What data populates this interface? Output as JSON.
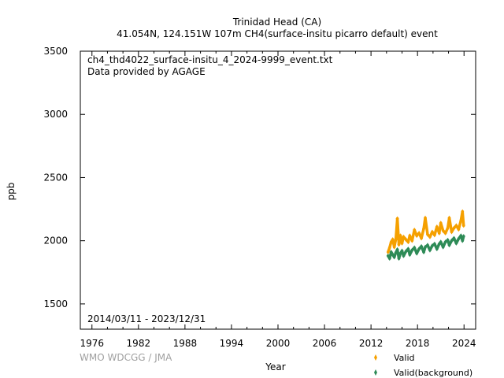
{
  "header": {
    "title": "Trinidad Head (CA)",
    "subtitle": "41.054N, 124.151W 107m    CH4(surface-insitu picarro default) event"
  },
  "annotations": {
    "filename": "ch4_thd4022_surface-insitu_4_2024-9999_event.txt",
    "provider": "Data provided by AGAGE",
    "date_range": "2014/03/11 - 2023/12/31"
  },
  "watermark": "WMO WDCGG / JMA",
  "colors": {
    "valid": "#f5a000",
    "background": "#2e8b57",
    "axis": "#000000",
    "watermark": "#a0a0a0"
  },
  "chart_data": {
    "type": "scatter",
    "xlabel": "Year",
    "ylabel": "ppb",
    "xlim": [
      1974.5,
      2025.5
    ],
    "ylim": [
      1300,
      3500
    ],
    "x_ticks": [
      "1976",
      "1982",
      "1988",
      "1994",
      "2000",
      "2006",
      "2012",
      "2018",
      "2024"
    ],
    "y_ticks": [
      "3500",
      "3000",
      "2500",
      "2000",
      "1500"
    ],
    "grid": false,
    "legend_position": "bottom-right",
    "series": [
      {
        "name": "Valid",
        "marker": "diamond",
        "points": [
          [
            2014.2,
            1910
          ],
          [
            2014.4,
            1945
          ],
          [
            2014.6,
            1990
          ],
          [
            2014.8,
            2010
          ],
          [
            2015.0,
            1950
          ],
          [
            2015.2,
            2010
          ],
          [
            2015.4,
            2175
          ],
          [
            2015.6,
            1970
          ],
          [
            2015.8,
            2040
          ],
          [
            2016.0,
            1980
          ],
          [
            2016.2,
            2030
          ],
          [
            2016.5,
            2010
          ],
          [
            2016.8,
            1990
          ],
          [
            2017.0,
            2040
          ],
          [
            2017.3,
            2000
          ],
          [
            2017.6,
            2085
          ],
          [
            2017.9,
            2040
          ],
          [
            2018.2,
            2060
          ],
          [
            2018.5,
            2020
          ],
          [
            2018.8,
            2095
          ],
          [
            2019.0,
            2180
          ],
          [
            2019.3,
            2050
          ],
          [
            2019.6,
            2030
          ],
          [
            2019.9,
            2070
          ],
          [
            2020.2,
            2045
          ],
          [
            2020.5,
            2110
          ],
          [
            2020.8,
            2060
          ],
          [
            2021.0,
            2140
          ],
          [
            2021.3,
            2080
          ],
          [
            2021.6,
            2060
          ],
          [
            2021.9,
            2100
          ],
          [
            2022.1,
            2180
          ],
          [
            2022.4,
            2070
          ],
          [
            2022.7,
            2100
          ],
          [
            2023.0,
            2120
          ],
          [
            2023.3,
            2090
          ],
          [
            2023.6,
            2160
          ],
          [
            2023.8,
            2230
          ],
          [
            2023.95,
            2120
          ]
        ]
      },
      {
        "name": "Valid(background)",
        "marker": "diamond",
        "points": [
          [
            2014.2,
            1880
          ],
          [
            2014.4,
            1860
          ],
          [
            2014.6,
            1910
          ],
          [
            2014.8,
            1890
          ],
          [
            2015.0,
            1870
          ],
          [
            2015.2,
            1905
          ],
          [
            2015.4,
            1930
          ],
          [
            2015.6,
            1860
          ],
          [
            2015.8,
            1900
          ],
          [
            2016.0,
            1920
          ],
          [
            2016.2,
            1880
          ],
          [
            2016.5,
            1915
          ],
          [
            2016.8,
            1935
          ],
          [
            2017.0,
            1890
          ],
          [
            2017.3,
            1925
          ],
          [
            2017.6,
            1945
          ],
          [
            2017.9,
            1900
          ],
          [
            2018.2,
            1935
          ],
          [
            2018.5,
            1955
          ],
          [
            2018.8,
            1910
          ],
          [
            2019.0,
            1950
          ],
          [
            2019.3,
            1965
          ],
          [
            2019.6,
            1925
          ],
          [
            2019.9,
            1960
          ],
          [
            2020.2,
            1975
          ],
          [
            2020.5,
            1935
          ],
          [
            2020.8,
            1975
          ],
          [
            2021.0,
            1990
          ],
          [
            2021.3,
            1950
          ],
          [
            2021.6,
            1990
          ],
          [
            2021.9,
            2005
          ],
          [
            2022.1,
            1965
          ],
          [
            2022.4,
            2000
          ],
          [
            2022.7,
            2020
          ],
          [
            2023.0,
            1980
          ],
          [
            2023.3,
            2015
          ],
          [
            2023.6,
            2040
          ],
          [
            2023.8,
            2000
          ],
          [
            2023.95,
            2035
          ]
        ]
      }
    ]
  }
}
